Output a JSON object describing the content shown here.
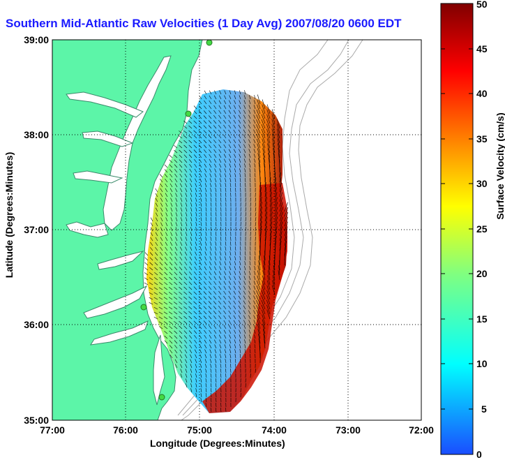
{
  "title": "Southern Mid-Atlantic Raw Velocities (1 Day Avg) 2007/08/20 0600 EDT",
  "axes": {
    "xlabel": "Longitude (Degrees:Minutes)",
    "ylabel": "Latitude (Degrees:Minutes)",
    "x_ticks": [
      "77:00",
      "76:00",
      "75:00",
      "74:00",
      "73:00",
      "72:00"
    ],
    "y_ticks": [
      "39:00",
      "38:00",
      "37:00",
      "36:00",
      "35:00"
    ]
  },
  "colorbar": {
    "label": "Surface Velocity (cm/s)",
    "ticks": [
      "50",
      "45",
      "40",
      "35",
      "30",
      "25",
      "20",
      "15",
      "10",
      "5",
      "0"
    ],
    "range": [
      0,
      50
    ],
    "stops": [
      "#1a4dff",
      "#00ffff",
      "#80ff80",
      "#ffff00",
      "#ff8000",
      "#ff0000",
      "#800000"
    ]
  },
  "colors": {
    "land": "#5cf5a8",
    "water": "#ffffff",
    "coast": "#3a8a6a",
    "bathymetry": "#aaaaaa",
    "stations": "#44d944"
  }
}
